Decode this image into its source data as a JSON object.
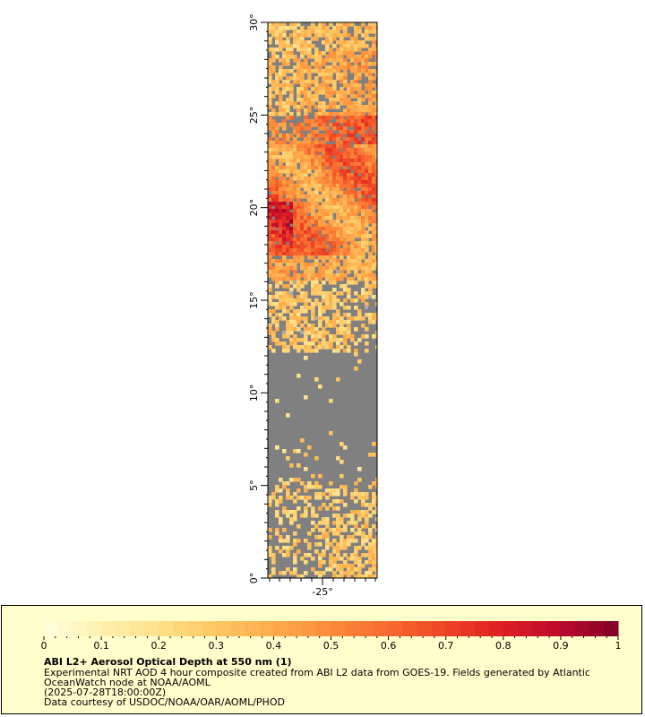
{
  "map": {
    "lat_labels": [
      "0°",
      "5°",
      "10°",
      "15°",
      "20°",
      "25°",
      "30°"
    ],
    "lon_labels": [
      "-25°"
    ],
    "lat_range": [
      0,
      30
    ],
    "no_data_color": "#808080",
    "land_mask_color": "#aaaaaa"
  },
  "legend": {
    "tick_labels": [
      "0",
      "0.1",
      "0.2",
      "0.3",
      "0.4",
      "0.5",
      "0.6",
      "0.7",
      "0.8",
      "0.9",
      "1"
    ],
    "range": [
      0,
      1
    ],
    "colormap": [
      "#ffffe0",
      "#fff0b0",
      "#fee08a",
      "#fec863",
      "#fdab4a",
      "#fc8a3b",
      "#f86a2e",
      "#ee4425",
      "#dd1d24",
      "#bc0a2a",
      "#7f0026"
    ],
    "title": "ABI L2+ Aerosol Optical Depth at 550 nm (1)",
    "description_line1": "Experimental NRT AOD 4 hour composite created from ABI L2 data from GOES-19. Fields generated by Atlantic",
    "description_line2": "OceanWatch node at NOAA/AOML",
    "timestamp": "(2025-07-28T18:00:00Z)",
    "credit": "Data courtesy of USDOC/NOAA/OAR/AOML/PHOD"
  }
}
